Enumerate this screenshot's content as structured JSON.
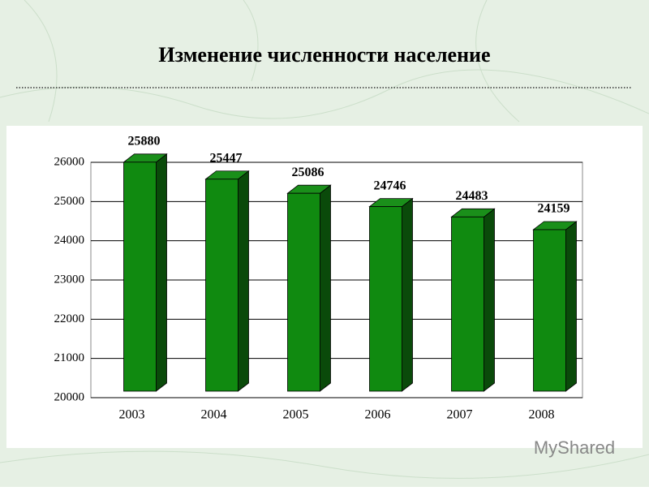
{
  "chart_data": {
    "type": "bar3d",
    "title": "Изменение численности население",
    "categories": [
      "2003",
      "2004",
      "2005",
      "2006",
      "2007",
      "2008"
    ],
    "values": [
      25880,
      25447,
      25086,
      24746,
      24483,
      24159
    ],
    "color": "#108a10",
    "ylim": [
      20000,
      26000
    ],
    "yticks": [
      20000,
      21000,
      22000,
      23000,
      24000,
      25000,
      26000
    ],
    "grid": true
  },
  "watermark": "MyShared"
}
